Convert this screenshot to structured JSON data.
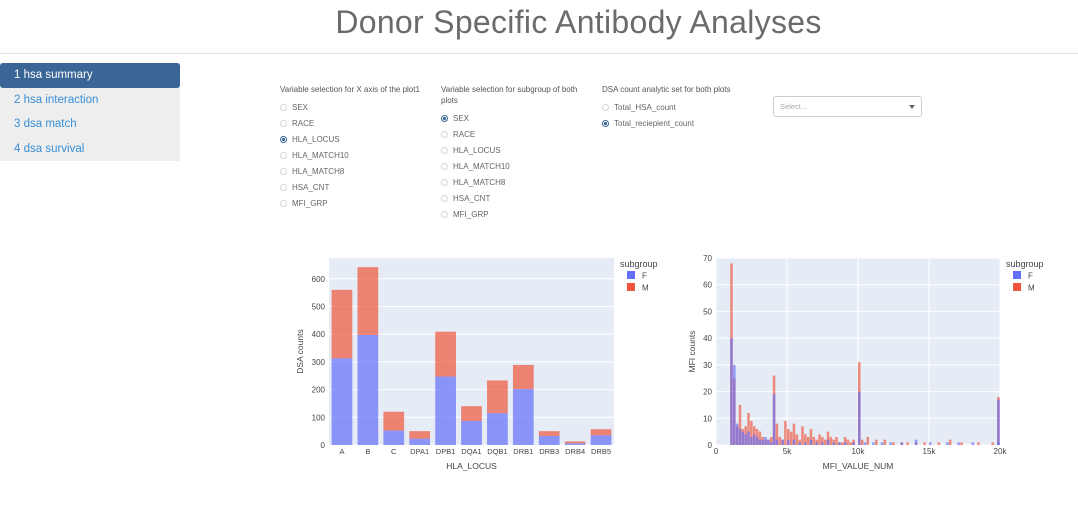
{
  "app": {
    "title": "Donor Specific Antibody Analyses"
  },
  "sidebar": {
    "items": [
      {
        "label": "1 hsa summary",
        "active": true
      },
      {
        "label": "2 hsa interaction",
        "active": false
      },
      {
        "label": "3 dsa match",
        "active": false
      },
      {
        "label": "4 dsa survival",
        "active": false
      }
    ]
  },
  "controls": {
    "x_axis": {
      "label": "Variable selection for X axis of the plot1",
      "options": [
        "SEX",
        "RACE",
        "HLA_LOCUS",
        "HLA_MATCH10",
        "HLA_MATCH8",
        "HSA_CNT",
        "MFI_GRP"
      ],
      "selected": "HLA_LOCUS"
    },
    "subgroup": {
      "label": "Variable selection for subgroup of both plots",
      "options": [
        "SEX",
        "RACE",
        "HLA_LOCUS",
        "HLA_MATCH10",
        "HLA_MATCH8",
        "HSA_CNT",
        "MFI_GRP"
      ],
      "selected": "SEX"
    },
    "dsa_set": {
      "label": "DSA count analytic set for both plots",
      "options": [
        "Total_HSA_count",
        "Total_reciepient_count"
      ],
      "selected": "Total_reciepient_count"
    },
    "select": {
      "placeholder": "Select..."
    }
  },
  "colors": {
    "F": "#636efa",
    "M": "#ef553b",
    "plot_bg": "#e5ecf6"
  },
  "chart_data": [
    {
      "type": "bar",
      "barmode": "stack",
      "categories": [
        "A",
        "B",
        "C",
        "DPA1",
        "DPB1",
        "DQA1",
        "DQB1",
        "DRB1",
        "DRB3",
        "DRB4",
        "DRB5"
      ],
      "series": [
        {
          "name": "F",
          "values": [
            313,
            397,
            52,
            23,
            247,
            87,
            115,
            202,
            33,
            6,
            35
          ]
        },
        {
          "name": "M",
          "values": [
            247,
            245,
            68,
            27,
            162,
            53,
            118,
            87,
            17,
            7,
            22
          ]
        }
      ],
      "xlabel": "HLA_LOCUS",
      "ylabel": "DSA counts",
      "yticks": [
        0,
        100,
        200,
        300,
        400,
        500,
        600
      ],
      "ylim": [
        0,
        675
      ],
      "legend_title": "subgroup",
      "legend_position": "right",
      "grid": true
    },
    {
      "type": "histogram",
      "barmode": "overlay",
      "xlabel": "MFI_VALUE_NUM",
      "ylabel": "MFI counts",
      "xlim": [
        0,
        20000
      ],
      "ylim": [
        0,
        70
      ],
      "xticks": [
        0,
        5000,
        10000,
        15000,
        20000
      ],
      "xtick_labels": [
        "0",
        "5k",
        "10k",
        "15k",
        "20k"
      ],
      "yticks": [
        0,
        10,
        20,
        30,
        40,
        50,
        60,
        70
      ],
      "bin_width": 200,
      "series": [
        {
          "name": "F",
          "bins": [
            {
              "x": 1000,
              "y": 40
            },
            {
              "x": 1200,
              "y": 30
            },
            {
              "x": 1400,
              "y": 8
            },
            {
              "x": 1600,
              "y": 6
            },
            {
              "x": 1800,
              "y": 5
            },
            {
              "x": 2000,
              "y": 4
            },
            {
              "x": 2200,
              "y": 5
            },
            {
              "x": 2400,
              "y": 3
            },
            {
              "x": 2600,
              "y": 4
            },
            {
              "x": 2800,
              "y": 3
            },
            {
              "x": 3000,
              "y": 2
            },
            {
              "x": 3200,
              "y": 2
            },
            {
              "x": 3400,
              "y": 3
            },
            {
              "x": 3600,
              "y": 2
            },
            {
              "x": 3800,
              "y": 1
            },
            {
              "x": 4000,
              "y": 19
            },
            {
              "x": 4200,
              "y": 2
            },
            {
              "x": 4600,
              "y": 2
            },
            {
              "x": 5000,
              "y": 2
            },
            {
              "x": 5400,
              "y": 2
            },
            {
              "x": 5800,
              "y": 1
            },
            {
              "x": 6200,
              "y": 1
            },
            {
              "x": 6600,
              "y": 2
            },
            {
              "x": 7000,
              "y": 1
            },
            {
              "x": 7400,
              "y": 1
            },
            {
              "x": 7800,
              "y": 2
            },
            {
              "x": 8200,
              "y": 1
            },
            {
              "x": 8600,
              "y": 1
            },
            {
              "x": 9000,
              "y": 1
            },
            {
              "x": 9600,
              "y": 1
            },
            {
              "x": 10000,
              "y": 20
            },
            {
              "x": 10400,
              "y": 1
            },
            {
              "x": 11000,
              "y": 1
            },
            {
              "x": 11600,
              "y": 1
            },
            {
              "x": 12200,
              "y": 1
            },
            {
              "x": 13000,
              "y": 1
            },
            {
              "x": 14000,
              "y": 2
            },
            {
              "x": 15000,
              "y": 1
            },
            {
              "x": 16200,
              "y": 1
            },
            {
              "x": 17000,
              "y": 1
            },
            {
              "x": 18000,
              "y": 1
            },
            {
              "x": 19800,
              "y": 1
            },
            {
              "x": 20000,
              "y": 17
            }
          ]
        },
        {
          "name": "M",
          "bins": [
            {
              "x": 1000,
              "y": 68
            },
            {
              "x": 1200,
              "y": 25
            },
            {
              "x": 1400,
              "y": 7
            },
            {
              "x": 1600,
              "y": 15
            },
            {
              "x": 1800,
              "y": 6
            },
            {
              "x": 2000,
              "y": 7
            },
            {
              "x": 2200,
              "y": 12
            },
            {
              "x": 2400,
              "y": 9
            },
            {
              "x": 2600,
              "y": 7
            },
            {
              "x": 2800,
              "y": 6
            },
            {
              "x": 3000,
              "y": 5
            },
            {
              "x": 3200,
              "y": 3
            },
            {
              "x": 3400,
              "y": 2
            },
            {
              "x": 3600,
              "y": 2
            },
            {
              "x": 3800,
              "y": 3
            },
            {
              "x": 4000,
              "y": 26
            },
            {
              "x": 4200,
              "y": 8
            },
            {
              "x": 4400,
              "y": 3
            },
            {
              "x": 4600,
              "y": 2
            },
            {
              "x": 4800,
              "y": 9
            },
            {
              "x": 5000,
              "y": 6
            },
            {
              "x": 5200,
              "y": 5
            },
            {
              "x": 5400,
              "y": 8
            },
            {
              "x": 5600,
              "y": 4
            },
            {
              "x": 5800,
              "y": 2
            },
            {
              "x": 6000,
              "y": 7
            },
            {
              "x": 6200,
              "y": 4
            },
            {
              "x": 6400,
              "y": 3
            },
            {
              "x": 6600,
              "y": 6
            },
            {
              "x": 6800,
              "y": 3
            },
            {
              "x": 7000,
              "y": 2
            },
            {
              "x": 7200,
              "y": 4
            },
            {
              "x": 7400,
              "y": 3
            },
            {
              "x": 7600,
              "y": 2
            },
            {
              "x": 7800,
              "y": 5
            },
            {
              "x": 8000,
              "y": 3
            },
            {
              "x": 8200,
              "y": 2
            },
            {
              "x": 8400,
              "y": 3
            },
            {
              "x": 8600,
              "y": 1
            },
            {
              "x": 8800,
              "y": 1
            },
            {
              "x": 9000,
              "y": 3
            },
            {
              "x": 9200,
              "y": 2
            },
            {
              "x": 9400,
              "y": 1
            },
            {
              "x": 9600,
              "y": 2
            },
            {
              "x": 10000,
              "y": 31
            },
            {
              "x": 10200,
              "y": 2
            },
            {
              "x": 10600,
              "y": 3
            },
            {
              "x": 11200,
              "y": 2
            },
            {
              "x": 11800,
              "y": 2
            },
            {
              "x": 12400,
              "y": 1
            },
            {
              "x": 13000,
              "y": 1
            },
            {
              "x": 13400,
              "y": 1
            },
            {
              "x": 14000,
              "y": 1
            },
            {
              "x": 14600,
              "y": 1
            },
            {
              "x": 15600,
              "y": 1
            },
            {
              "x": 16400,
              "y": 2
            },
            {
              "x": 17200,
              "y": 1
            },
            {
              "x": 18400,
              "y": 1
            },
            {
              "x": 19400,
              "y": 1
            },
            {
              "x": 20000,
              "y": 18
            }
          ]
        }
      ],
      "legend_title": "subgroup",
      "legend_position": "right",
      "grid": true
    }
  ]
}
